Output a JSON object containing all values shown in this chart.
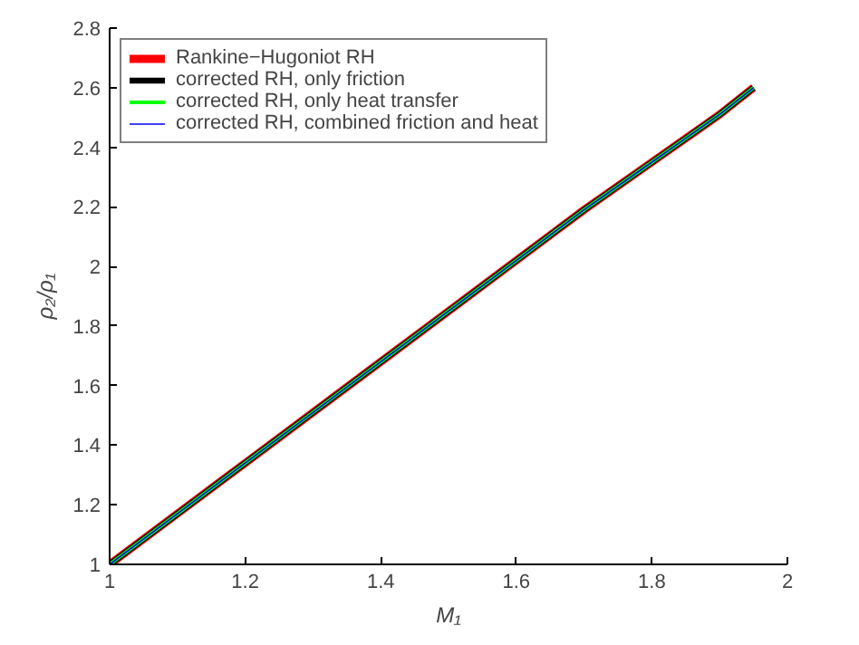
{
  "chart_data": {
    "type": "line",
    "xlabel": "M₁",
    "ylabel": "ρ₂/ρ₁",
    "x": [
      1,
      1.1,
      1.2,
      1.3,
      1.4,
      1.5,
      1.6,
      1.7,
      1.8,
      1.9,
      1.95
    ],
    "series": [
      {
        "name": "Rankine−Hugoniot RH",
        "color": "#ff0000",
        "values": [
          1.0,
          1.17,
          1.34,
          1.51,
          1.68,
          1.85,
          2.02,
          2.19,
          2.35,
          2.51,
          2.6
        ]
      },
      {
        "name": "corrected RH, only friction",
        "color": "#000000",
        "values": [
          1.0,
          1.17,
          1.34,
          1.51,
          1.68,
          1.85,
          2.02,
          2.19,
          2.35,
          2.51,
          2.6
        ]
      },
      {
        "name": "corrected RH, only heat transfer",
        "color": "#00ff00",
        "values": [
          1.0,
          1.17,
          1.34,
          1.51,
          1.68,
          1.85,
          2.02,
          2.19,
          2.35,
          2.51,
          2.6
        ]
      },
      {
        "name": "corrected RH, combined friction and heat",
        "color": "#0000ff",
        "values": [
          1.0,
          1.17,
          1.34,
          1.51,
          1.68,
          1.85,
          2.02,
          2.19,
          2.35,
          2.51,
          2.6
        ]
      }
    ],
    "xlim": [
      1,
      2
    ],
    "ylim": [
      1,
      2.8
    ],
    "xticks": [
      1,
      1.2,
      1.4,
      1.6,
      1.8,
      2
    ],
    "yticks": [
      1,
      1.2,
      1.4,
      1.6,
      1.8,
      2,
      2.2,
      2.4,
      2.6,
      2.8
    ],
    "grid": false,
    "legend": "top left",
    "marker": "none",
    "line_style": "solid"
  }
}
